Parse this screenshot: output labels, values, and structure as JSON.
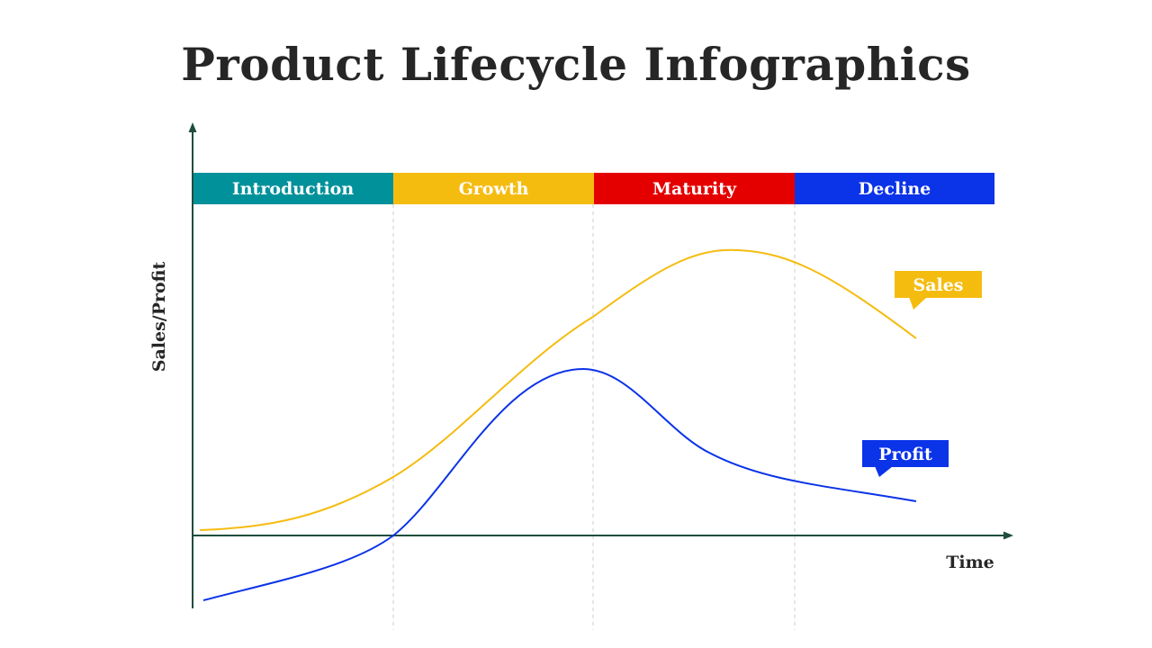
{
  "title": "Product Lifecycle Infographics",
  "colors": {
    "axis": "#1f4d3e",
    "sales": "#f5bc10",
    "profit": "#0b33e8",
    "divider": "#cccccc"
  },
  "phases": [
    {
      "label": "Introduction",
      "color": "#00919b"
    },
    {
      "label": "Growth",
      "color": "#f5bc10"
    },
    {
      "label": "Maturity",
      "color": "#e50000"
    },
    {
      "label": "Decline",
      "color": "#0b33e8"
    }
  ],
  "axes": {
    "x_label": "Time",
    "y_label": "Sales/Profit"
  },
  "curves": {
    "sales": {
      "label": "Sales"
    },
    "profit": {
      "label": "Profit"
    }
  }
}
